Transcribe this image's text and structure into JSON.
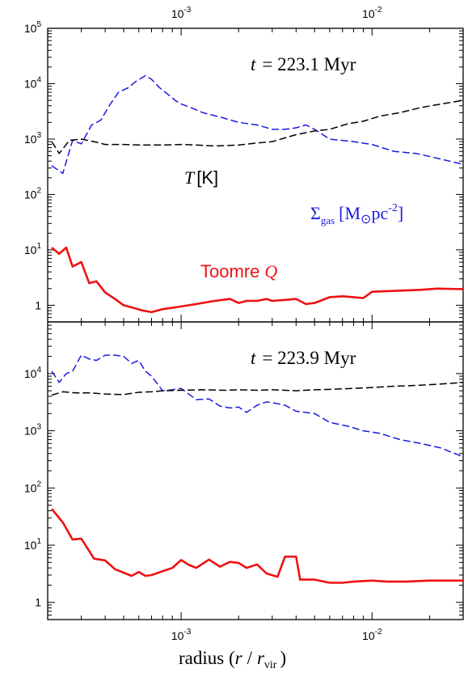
{
  "chart_data": [
    {
      "type": "line",
      "panel": "top",
      "annotation": {
        "t_label": "t",
        "t_value": "= 223.1 Myr"
      },
      "x_scale": "log",
      "y_scale": "log",
      "xlim": [
        0.0002,
        0.03
      ],
      "ylim": [
        0.5,
        100000
      ],
      "x_ticks": [
        {
          "value": 0.001,
          "base": "10",
          "exp": "-3"
        },
        {
          "value": 0.01,
          "base": "10",
          "exp": "-2"
        }
      ],
      "y_ticks": [
        {
          "value": 1,
          "base": "1",
          "exp": ""
        },
        {
          "value": 10,
          "base": "10",
          "exp": "1"
        },
        {
          "value": 100,
          "base": "10",
          "exp": "2"
        },
        {
          "value": 1000,
          "base": "10",
          "exp": "3"
        },
        {
          "value": 10000,
          "base": "10",
          "exp": "4"
        },
        {
          "value": 100000,
          "base": "10",
          "exp": "5"
        }
      ],
      "series": [
        {
          "key": "sigma",
          "color": "#1a1ae0",
          "style": "dashed",
          "x": [
            0.00021,
            0.00024,
            0.00027,
            0.0003,
            0.00034,
            0.00038,
            0.00042,
            0.00047,
            0.00053,
            0.00058,
            0.00065,
            0.0007,
            0.00077,
            0.00085,
            0.00093,
            0.001,
            0.00115,
            0.0013,
            0.0016,
            0.002,
            0.0025,
            0.003,
            0.0035,
            0.004,
            0.0045,
            0.005,
            0.006,
            0.008,
            0.01,
            0.013,
            0.017,
            0.022,
            0.03
          ],
          "y": [
            330,
            240,
            950,
            820,
            1800,
            2200,
            4000,
            7000,
            8500,
            11000,
            14000,
            12000,
            8500,
            6500,
            5000,
            4300,
            3600,
            3000,
            2500,
            2000,
            1800,
            1500,
            1500,
            1600,
            1800,
            1500,
            1000,
            900,
            800,
            600,
            550,
            450,
            350
          ]
        },
        {
          "key": "temperature",
          "color": "#000000",
          "style": "dashed",
          "x": [
            0.00021,
            0.00023,
            0.00026,
            0.0003,
            0.00035,
            0.0004,
            0.0005,
            0.0006,
            0.0007,
            0.0008,
            0.001,
            0.0012,
            0.0015,
            0.002,
            0.0025,
            0.003,
            0.0035,
            0.004,
            0.005,
            0.006,
            0.0075,
            0.009,
            0.011,
            0.014,
            0.018,
            0.023,
            0.03
          ],
          "y": [
            900,
            550,
            950,
            1000,
            900,
            800,
            800,
            780,
            780,
            780,
            800,
            780,
            750,
            780,
            850,
            900,
            1050,
            1200,
            1400,
            1500,
            1900,
            2100,
            2600,
            3000,
            3700,
            4300,
            5000
          ]
        },
        {
          "key": "toomre",
          "color": "#ee1111",
          "style": "solid",
          "x": [
            0.00021,
            0.00023,
            0.00025,
            0.00027,
            0.0003,
            0.00033,
            0.00036,
            0.0004,
            0.00045,
            0.0005,
            0.00056,
            0.00063,
            0.0007,
            0.0008,
            0.0009,
            0.001,
            0.0012,
            0.0015,
            0.0018,
            0.002,
            0.0022,
            0.0025,
            0.0028,
            0.003,
            0.0035,
            0.004,
            0.0045,
            0.005,
            0.006,
            0.007,
            0.008,
            0.009,
            0.01,
            0.012,
            0.015,
            0.018,
            0.022,
            0.03
          ],
          "y": [
            11,
            8.5,
            11,
            5,
            6,
            2.5,
            2.7,
            1.7,
            1.3,
            1.0,
            0.9,
            0.8,
            0.75,
            0.85,
            0.9,
            0.95,
            1.05,
            1.2,
            1.3,
            1.1,
            1.2,
            1.2,
            1.3,
            1.2,
            1.25,
            1.3,
            1.05,
            1.1,
            1.4,
            1.45,
            1.4,
            1.35,
            1.75,
            1.8,
            1.85,
            1.9,
            2.0,
            1.95
          ]
        }
      ],
      "labels": {
        "temperature": {
          "symbol": "T",
          "unit": "[K]"
        },
        "sigma": {
          "symbol": "Σ",
          "subscript": "gas",
          "unit_open": "[M",
          "sun": "⊙",
          "unit_mid": "pc",
          "exp": "-2",
          "unit_close": "]"
        },
        "toomre": {
          "text": "Toomre",
          "symbol": "Q"
        }
      }
    },
    {
      "type": "line",
      "panel": "bottom",
      "annotation": {
        "t_label": "t",
        "t_value": "= 223.9 Myr"
      },
      "x_scale": "log",
      "y_scale": "log",
      "xlim": [
        0.0002,
        0.03
      ],
      "ylim": [
        0.5,
        80000
      ],
      "x_ticks": [
        {
          "value": 0.001,
          "base": "10",
          "exp": "-3"
        },
        {
          "value": 0.01,
          "base": "10",
          "exp": "-2"
        }
      ],
      "y_ticks": [
        {
          "value": 1,
          "base": "1",
          "exp": ""
        },
        {
          "value": 10,
          "base": "10",
          "exp": "1"
        },
        {
          "value": 100,
          "base": "10",
          "exp": "2"
        },
        {
          "value": 1000,
          "base": "10",
          "exp": "3"
        },
        {
          "value": 10000,
          "base": "10",
          "exp": "4"
        }
      ],
      "xlabel": {
        "text": "radius (",
        "r": "r",
        "slash": "/",
        "rv": "r",
        "sub": "vir",
        "close": ")"
      },
      "series": [
        {
          "key": "sigma",
          "color": "#1a1ae0",
          "style": "dashed",
          "x": [
            0.00021,
            0.00023,
            0.00025,
            0.00027,
            0.0003,
            0.00033,
            0.00036,
            0.0004,
            0.00045,
            0.0005,
            0.00055,
            0.0006,
            0.00065,
            0.0007,
            0.0008,
            0.0009,
            0.001,
            0.0012,
            0.0014,
            0.0016,
            0.0018,
            0.002,
            0.0022,
            0.0025,
            0.0028,
            0.003,
            0.0035,
            0.004,
            0.005,
            0.006,
            0.0075,
            0.009,
            0.011,
            0.014,
            0.018,
            0.023,
            0.03
          ],
          "y": [
            11000,
            7000,
            10000,
            11000,
            21000,
            18000,
            17000,
            21000,
            21000,
            20000,
            15000,
            17000,
            11000,
            9000,
            5000,
            5200,
            5500,
            3500,
            3600,
            2700,
            2500,
            2600,
            2100,
            2800,
            3200,
            3100,
            2800,
            2200,
            2000,
            1400,
            1200,
            1000,
            900,
            700,
            600,
            500,
            350
          ]
        },
        {
          "key": "temperature",
          "color": "#000000",
          "style": "dashed",
          "x": [
            0.00021,
            0.00024,
            0.00028,
            0.00033,
            0.0004,
            0.0005,
            0.0006,
            0.0007,
            0.0008,
            0.001,
            0.0013,
            0.0017,
            0.002,
            0.0025,
            0.003,
            0.004,
            0.005,
            0.006,
            0.008,
            0.01,
            0.013,
            0.017,
            0.022,
            0.03
          ],
          "y": [
            4200,
            4800,
            4600,
            4600,
            4400,
            4300,
            4700,
            4800,
            5000,
            5100,
            5200,
            5100,
            5200,
            5100,
            5200,
            5000,
            5200,
            5300,
            5500,
            5700,
            6000,
            6200,
            6500,
            7000
          ]
        },
        {
          "key": "toomre",
          "color": "#ee1111",
          "style": "solid",
          "x": [
            0.00021,
            0.00024,
            0.00027,
            0.0003,
            0.00035,
            0.0004,
            0.00045,
            0.0005,
            0.00055,
            0.0006,
            0.00065,
            0.0007,
            0.0008,
            0.0009,
            0.001,
            0.0011,
            0.0012,
            0.0014,
            0.0016,
            0.0018,
            0.002,
            0.0022,
            0.0025,
            0.0028,
            0.0032,
            0.0035,
            0.004,
            0.0042,
            0.005,
            0.006,
            0.007,
            0.008,
            0.01,
            0.012,
            0.015,
            0.02,
            0.025,
            0.03
          ],
          "y": [
            43,
            25,
            12.5,
            13,
            5.8,
            5.4,
            3.8,
            3.3,
            2.9,
            3.4,
            2.9,
            3.0,
            3.5,
            4.0,
            5.5,
            4.5,
            4.0,
            5.6,
            4.2,
            5.1,
            4.9,
            4.0,
            4.6,
            3.2,
            2.8,
            6.3,
            6.3,
            2.5,
            2.5,
            2.2,
            2.2,
            2.3,
            2.4,
            2.3,
            2.3,
            2.4,
            2.4,
            2.4
          ]
        }
      ]
    }
  ]
}
